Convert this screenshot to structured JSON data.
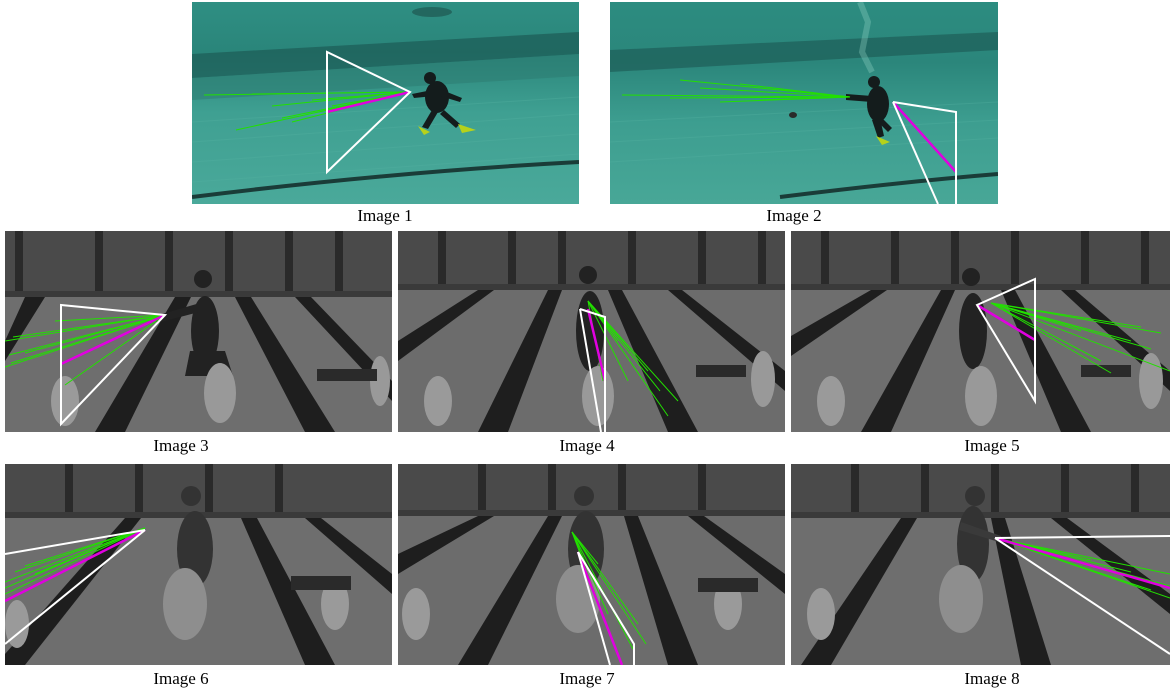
{
  "figure": {
    "captions": [
      "Image 1",
      "Image 2",
      "Image 3",
      "Image 4",
      "Image 5",
      "Image 6",
      "Image 7",
      "Image 8"
    ],
    "overlay_colors": {
      "cone_outline": "#ffffff",
      "ray_samples": "#22e000",
      "mean_direction": "#e000e0"
    },
    "scene_colors": {
      "underwater_pool_teal": "#3f9a8c",
      "pool_gray": "#6c6c6c",
      "lane_stripe": "#1c1c1c"
    }
  }
}
